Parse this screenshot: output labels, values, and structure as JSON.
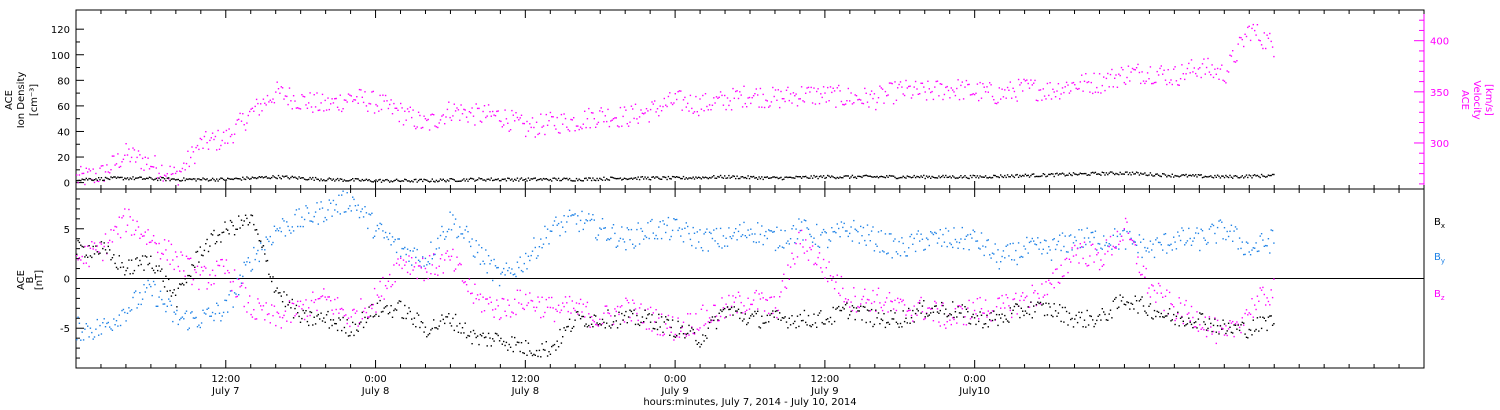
{
  "chart_data": [
    {
      "type": "scatter",
      "panel": "top",
      "y_axis_left": {
        "label_lines": [
          "ACE",
          "Ion Density",
          "[cm⁻³]"
        ],
        "ylim": [
          -5,
          135
        ],
        "ticks": [
          0,
          20,
          40,
          60,
          80,
          100,
          120
        ],
        "tick_labels": [
          "0",
          "20",
          "40",
          "60",
          "80",
          "100",
          "120"
        ]
      },
      "y_axis_right": {
        "label_lines": [
          "ACE",
          "Velocity",
          "[km/s]"
        ],
        "ylim": [
          255,
          430
        ],
        "ticks": [
          300,
          350,
          400
        ],
        "tick_labels": [
          "300",
          "350",
          "400"
        ],
        "color": "#ff00ff"
      },
      "series": [
        {
          "axis": "right",
          "color": "#ff00ff",
          "x": [
            0,
            2,
            4,
            6,
            8,
            10,
            12,
            14,
            16,
            18,
            20,
            22,
            24,
            26,
            28,
            30,
            32,
            34,
            36,
            38,
            40,
            42,
            44,
            46,
            48,
            50,
            52,
            54,
            56,
            58,
            60,
            62,
            64,
            66,
            68,
            70,
            72,
            74,
            76,
            78,
            80,
            82,
            84,
            86,
            88,
            90,
            92,
            94,
            96
          ],
          "y": [
            266,
            270,
            290,
            280,
            268,
            300,
            305,
            330,
            350,
            342,
            337,
            345,
            340,
            330,
            318,
            333,
            328,
            327,
            315,
            320,
            322,
            328,
            326,
            332,
            342,
            338,
            342,
            348,
            344,
            348,
            347,
            345,
            344,
            352,
            350,
            354,
            351,
            348,
            354,
            352,
            358,
            360,
            368,
            370,
            366,
            375,
            368,
            412,
            395
          ]
        },
        {
          "axis": "left",
          "color": "#000000",
          "x": [
            0,
            4,
            8,
            12,
            16,
            20,
            24,
            28,
            32,
            36,
            40,
            44,
            48,
            52,
            56,
            60,
            64,
            68,
            72,
            76,
            80,
            84,
            88,
            92,
            96
          ],
          "y": [
            3,
            4,
            3,
            3,
            5,
            3,
            2,
            2,
            3,
            3,
            3,
            4,
            4,
            5,
            4,
            5,
            5,
            5,
            5,
            6,
            7,
            8,
            6,
            5,
            6
          ]
        }
      ]
    },
    {
      "type": "scatter",
      "panel": "bottom",
      "y_axis_left": {
        "label_lines": [
          "ACE",
          "B",
          "[nT]"
        ],
        "ylim": [
          -9,
          9
        ],
        "ticks": [
          -5,
          0,
          5
        ],
        "tick_labels": [
          "-5",
          "0",
          "5"
        ]
      },
      "zero_line": true,
      "series": [
        {
          "name": "Bx",
          "legend": {
            "base": "B",
            "sub": "x"
          },
          "color": "#000000",
          "x": [
            0,
            2,
            4,
            6,
            8,
            10,
            12,
            14,
            16,
            18,
            20,
            22,
            24,
            26,
            28,
            30,
            32,
            34,
            36,
            38,
            40,
            42,
            44,
            46,
            48,
            50,
            52,
            54,
            56,
            58,
            60,
            62,
            64,
            66,
            68,
            70,
            72,
            74,
            76,
            78,
            80,
            82,
            84,
            86,
            88,
            90,
            92,
            94,
            96
          ],
          "y": [
            3,
            3,
            1,
            2,
            -2,
            3,
            5,
            6,
            -1,
            -4,
            -4,
            -5,
            -3,
            -3,
            -5,
            -4,
            -6,
            -6,
            -7,
            -7,
            -4,
            -4,
            -4,
            -4,
            -5,
            -6,
            -3,
            -4,
            -4,
            -4,
            -4,
            -3,
            -4,
            -4,
            -3,
            -3,
            -4,
            -4,
            -3,
            -3,
            -4,
            -4,
            -2,
            -3,
            -4,
            -4,
            -5,
            -5,
            -4
          ]
        },
        {
          "name": "By",
          "legend": {
            "base": "B",
            "sub": "y"
          },
          "color": "#1e82e6",
          "x": [
            0,
            2,
            4,
            6,
            8,
            10,
            12,
            14,
            16,
            18,
            20,
            22,
            24,
            26,
            28,
            30,
            32,
            34,
            36,
            38,
            40,
            42,
            44,
            46,
            48,
            50,
            52,
            54,
            56,
            58,
            60,
            62,
            64,
            66,
            68,
            70,
            72,
            74,
            76,
            78,
            80,
            82,
            84,
            86,
            88,
            90,
            92,
            94,
            96
          ],
          "y": [
            -5,
            -5,
            -3,
            -1,
            -4,
            -4,
            -3,
            2,
            5,
            6,
            7,
            8,
            5,
            3,
            2,
            6,
            3,
            0,
            2,
            5,
            6,
            5,
            4,
            5,
            5,
            4,
            4,
            5,
            4,
            5,
            4,
            5,
            4,
            3,
            4,
            4,
            4,
            2,
            3,
            3,
            4,
            4,
            4,
            3,
            4,
            4,
            5,
            3,
            4
          ]
        },
        {
          "name": "Bz",
          "legend": {
            "base": "B",
            "sub": "z"
          },
          "color": "#ff00ff",
          "x": [
            0,
            2,
            4,
            6,
            8,
            10,
            12,
            14,
            16,
            18,
            20,
            22,
            24,
            26,
            28,
            30,
            32,
            34,
            36,
            38,
            40,
            42,
            44,
            46,
            48,
            50,
            52,
            54,
            56,
            58,
            60,
            62,
            64,
            66,
            68,
            70,
            72,
            74,
            76,
            78,
            80,
            82,
            84,
            86,
            88,
            90,
            92,
            94,
            96
          ],
          "y": [
            2,
            3,
            6,
            4,
            2,
            0,
            1,
            -3,
            -4,
            -3,
            -2,
            -4,
            -2,
            2,
            1,
            2,
            -2,
            -3,
            -2,
            -3,
            -3,
            -4,
            -3,
            -4,
            -5,
            -4,
            -3,
            -2,
            -3,
            4,
            1,
            -2,
            -2,
            -3,
            -3,
            -4,
            -3,
            -3,
            -2,
            -1,
            3,
            2,
            5,
            -1,
            -3,
            -4,
            -6,
            -3,
            -1
          ]
        }
      ]
    }
  ],
  "x_axis": {
    "tick_labels": [
      {
        "time": "12:00",
        "date": "July 7"
      },
      {
        "time": "0:00",
        "date": "July 8"
      },
      {
        "time": "12:00",
        "date": "July 8"
      },
      {
        "time": "0:00",
        "date": "July 9"
      },
      {
        "time": "12:00",
        "date": "July 9"
      },
      {
        "time": "0:00",
        "date": "July10"
      }
    ],
    "major_hours": [
      12,
      24,
      36,
      48,
      60,
      72
    ],
    "minor_step_hours": 2,
    "xlim_hours": [
      0,
      108
    ],
    "xlabel": "hours:minutes, July  7, 2014 - July 10, 2014"
  },
  "colors": {
    "density": "#000000",
    "velocity": "#ff00ff",
    "bx": "#000000",
    "by": "#1e82e6",
    "bz": "#ff00ff"
  }
}
